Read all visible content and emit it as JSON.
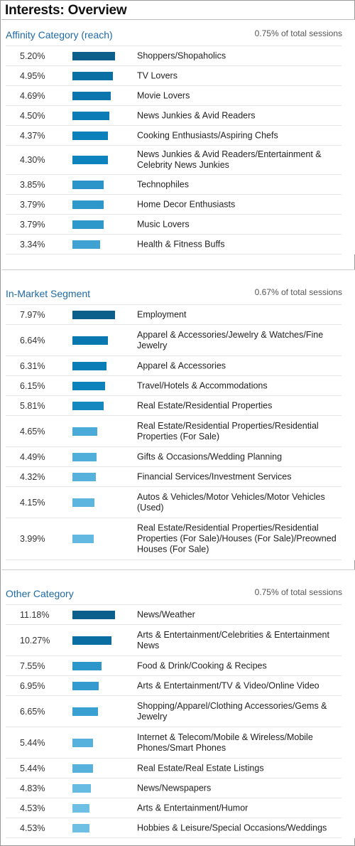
{
  "page": {
    "title": "Interests: Overview"
  },
  "panels": [
    {
      "id": "affinity",
      "title": "Affinity Category (reach)",
      "sessions": "0.75% of total sessions",
      "rows": [
        {
          "pct": "5.20%",
          "value": 5.2,
          "label": "Shoppers/Shopaholics",
          "color": "#0b5f8a"
        },
        {
          "pct": "4.95%",
          "value": 4.95,
          "label": "TV Lovers",
          "color": "#0a6fa3"
        },
        {
          "pct": "4.69%",
          "value": 4.69,
          "label": "Movie Lovers",
          "color": "#0a76ad"
        },
        {
          "pct": "4.50%",
          "value": 4.5,
          "label": "News Junkies & Avid Readers",
          "color": "#0b7cb5"
        },
        {
          "pct": "4.37%",
          "value": 4.37,
          "label": "Cooking Enthusiasts/Aspiring Chefs",
          "color": "#0c80ba"
        },
        {
          "pct": "4.30%",
          "value": 4.3,
          "label": "News Junkies & Avid Readers/Entertainment & Celebrity News Junkies",
          "color": "#0e83bd"
        },
        {
          "pct": "3.85%",
          "value": 3.85,
          "label": "Technophiles",
          "color": "#2b95c9"
        },
        {
          "pct": "3.79%",
          "value": 3.79,
          "label": "Home Decor Enthusiasts",
          "color": "#2e98cb"
        },
        {
          "pct": "3.79%",
          "value": 3.79,
          "label": "Music Lovers",
          "color": "#2e98cb"
        },
        {
          "pct": "3.34%",
          "value": 3.34,
          "label": "Health & Fitness Buffs",
          "color": "#3fa2d2"
        }
      ]
    },
    {
      "id": "in-market",
      "title": "In-Market Segment",
      "sessions": "0.67% of total sessions",
      "rows": [
        {
          "pct": "7.97%",
          "value": 7.97,
          "label": "Employment",
          "color": "#0b5f8a"
        },
        {
          "pct": "6.64%",
          "value": 6.64,
          "label": "Apparel & Accessories/Jewelry & Watches/Fine Jewelry",
          "color": "#0a78b0"
        },
        {
          "pct": "6.31%",
          "value": 6.31,
          "label": "Apparel & Accessories",
          "color": "#0b7db6"
        },
        {
          "pct": "6.15%",
          "value": 6.15,
          "label": "Travel/Hotels & Accommodations",
          "color": "#0e82bb"
        },
        {
          "pct": "5.81%",
          "value": 5.81,
          "label": "Real Estate/Residential Properties",
          "color": "#1688c0"
        },
        {
          "pct": "4.65%",
          "value": 4.65,
          "label": "Real Estate/Residential Properties/Residential Properties (For Sale)",
          "color": "#4aaad8"
        },
        {
          "pct": "4.49%",
          "value": 4.49,
          "label": "Gifts & Occasions/Wedding Planning",
          "color": "#50aeda"
        },
        {
          "pct": "4.32%",
          "value": 4.32,
          "label": "Financial Services/Investment Services",
          "color": "#56b1dc"
        },
        {
          "pct": "4.15%",
          "value": 4.15,
          "label": "Autos & Vehicles/Motor Vehicles/Motor Vehicles (Used)",
          "color": "#5cb5de"
        },
        {
          "pct": "3.99%",
          "value": 3.99,
          "label": "Real Estate/Residential Properties/Residential Properties (For Sale)/Houses (For Sale)/Preowned Houses (For Sale)",
          "color": "#62b8e0"
        }
      ]
    },
    {
      "id": "other",
      "title": "Other Category",
      "sessions": "0.75% of total sessions",
      "rows": [
        {
          "pct": "11.18%",
          "value": 11.18,
          "label": "News/Weather",
          "color": "#0b5f8a"
        },
        {
          "pct": "10.27%",
          "value": 10.27,
          "label": "Arts & Entertainment/Celebrities & Entertainment News",
          "color": "#0b6ea2"
        },
        {
          "pct": "7.55%",
          "value": 7.55,
          "label": "Food & Drink/Cooking & Recipes",
          "color": "#2c96cb"
        },
        {
          "pct": "6.95%",
          "value": 6.95,
          "label": "Arts & Entertainment/TV & Video/Online Video",
          "color": "#359bce"
        },
        {
          "pct": "6.65%",
          "value": 6.65,
          "label": "Shopping/Apparel/Clothing Accessories/Gems & Jewelry",
          "color": "#3a9fd1"
        },
        {
          "pct": "5.44%",
          "value": 5.44,
          "label": "Internet & Telecom/Mobile & Wireless/Mobile Phones/Smart Phones",
          "color": "#56b1dc"
        },
        {
          "pct": "5.44%",
          "value": 5.44,
          "label": "Real Estate/Real Estate Listings",
          "color": "#56b1dc"
        },
        {
          "pct": "4.83%",
          "value": 4.83,
          "label": "News/Newspapers",
          "color": "#66bbe2"
        },
        {
          "pct": "4.53%",
          "value": 4.53,
          "label": "Arts & Entertainment/Humor",
          "color": "#6dbfe4"
        },
        {
          "pct": "4.53%",
          "value": 4.53,
          "label": "Hobbies & Leisure/Special Occasions/Weddings",
          "color": "#6dbfe4"
        }
      ]
    }
  ]
}
